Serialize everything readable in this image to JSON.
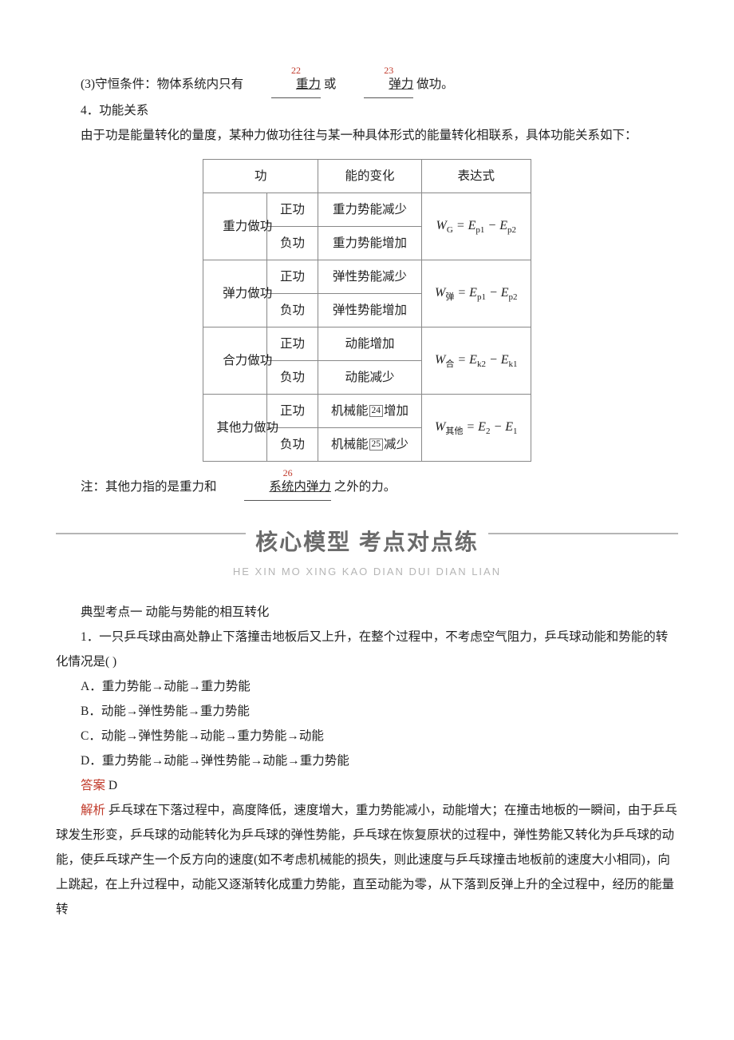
{
  "colors": {
    "text": "#222222",
    "accent_red": "#c13a2a",
    "sup_red": "#c0392b",
    "banner_gray": "#6b6b6b",
    "banner_light": "#b5b5b5",
    "border": "#888888"
  },
  "typography": {
    "body_family": "SimSun",
    "body_size_pt": 12,
    "line_height": 2.0,
    "banner_family": "SimHei",
    "banner_size_pt": 21,
    "formula_family": "Times New Roman"
  },
  "top": {
    "cond_prefix": "(3)守恒条件：物体系统内只有",
    "sup22": "22",
    "gravity": "重力",
    "or": "或",
    "sup23": "23",
    "spring": "弹力",
    "cond_suffix": "做功。",
    "sec4_title": "4．功能关系",
    "sec4_body": "由于功是能量转化的量度，某种力做功往往与某一种具体形式的能量转化相联系，具体功能关系如下："
  },
  "table": {
    "headers": [
      "功",
      "能的变化",
      "表达式"
    ],
    "rows": [
      {
        "force": "重力做功",
        "pos": "正功",
        "pos_change": "重力势能减少",
        "neg": "负功",
        "neg_change": "重力势能增加",
        "expr_lhs": "W",
        "expr_sub": "G",
        "expr_rhs_a": "E",
        "expr_sub_a": "p1",
        "expr_rhs_b": "E",
        "expr_sub_b": "p2"
      },
      {
        "force": "弹力做功",
        "pos": "正功",
        "pos_change": "弹性势能减少",
        "neg": "负功",
        "neg_change": "弹性势能增加",
        "expr_lhs": "W",
        "expr_sub": "弹",
        "expr_rhs_a": "E",
        "expr_sub_a": "p1",
        "expr_rhs_b": "E",
        "expr_sub_b": "p2"
      },
      {
        "force": "合力做功",
        "pos": "正功",
        "pos_change": "动能增加",
        "neg": "负功",
        "neg_change": "动能减少",
        "expr_lhs": "W",
        "expr_sub": "合",
        "expr_rhs_a": "E",
        "expr_sub_a": "k2",
        "expr_rhs_b": "E",
        "expr_sub_b": "k1"
      },
      {
        "force": "其他力做功",
        "pos": "正功",
        "pos_change_pre": "机械能",
        "pos_box": "24",
        "pos_change_post": "增加",
        "neg": "负功",
        "neg_change_pre": "机械能",
        "neg_box": "25",
        "neg_change_post": "减少",
        "expr_lhs": "W",
        "expr_sub": "其他",
        "expr_rhs_a": "E",
        "expr_sub_a": "2",
        "expr_rhs_b": "E",
        "expr_sub_b": "1"
      }
    ]
  },
  "note": {
    "prefix": "注：其他力指的是重力和",
    "sup26": "26",
    "underline": "系统内弹力",
    "suffix": "之外的力。"
  },
  "banner": {
    "title": "核心模型  考点对点练",
    "pinyin": "HE XIN MO XING    KAO DIAN DUI DIAN LIAN"
  },
  "exam": {
    "topic_title": "典型考点一      动能与势能的相互转化",
    "q1": "1．一只乒乓球由高处静止下落撞击地板后又上升，在整个过程中，不考虑空气阻力，乒乓球动能和势能的转化情况是(    )",
    "opts": {
      "A": "A．重力势能→动能→重力势能",
      "B": "B．动能→弹性势能→重力势能",
      "C": "C．动能→弹性势能→动能→重力势能→动能",
      "D": "D．重力势能→动能→弹性势能→动能→重力势能"
    },
    "answer_label": "答案",
    "answer_value": "D",
    "analysis_label": "解析",
    "analysis_body": "乒乓球在下落过程中，高度降低，速度增大，重力势能减小，动能增大；在撞击地板的一瞬间，由于乒乓球发生形变，乒乓球的动能转化为乒乓球的弹性势能，乒乓球在恢复原状的过程中，弹性势能又转化为乒乓球的动能，使乒乓球产生一个反方向的速度(如不考虑机械能的损失，则此速度与乒乓球撞击地板前的速度大小相同)，向上跳起，在上升过程中，动能又逐渐转化成重力势能，直至动能为零，从下落到反弹上升的全过程中，经历的能量转"
  }
}
